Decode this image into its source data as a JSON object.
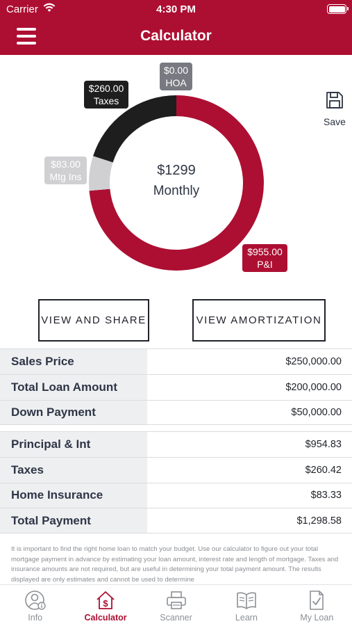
{
  "status_bar": {
    "carrier": "Carrier",
    "time": "4:30 PM"
  },
  "header": {
    "title": "Calculator",
    "menu_icon": "hamburger-menu-icon"
  },
  "chart": {
    "center_amount": "$1299",
    "center_label": "Monthly",
    "segments": [
      {
        "label": "P&I",
        "amount": "$955.00",
        "value": 955,
        "color": "#ad0f32"
      },
      {
        "label": "Mtg Ins",
        "amount": "$83.00",
        "value": 83,
        "color": "#d0d0d2"
      },
      {
        "label": "Taxes",
        "amount": "$260.00",
        "value": 260,
        "color": "#1e1e1f"
      },
      {
        "label": "HOA",
        "amount": "$0.00",
        "value": 0,
        "color": "#777a80"
      }
    ]
  },
  "save": {
    "label": "Save",
    "icon": "floppy-disk-icon"
  },
  "buttons": {
    "share": "VIEW AND SHARE",
    "amortization": "VIEW AMORTIZATION"
  },
  "loan_rows": [
    {
      "label": "Sales Price",
      "value": "$250,000.00"
    },
    {
      "label": "Total Loan Amount",
      "value": "$200,000.00"
    },
    {
      "label": "Down Payment",
      "value": "$50,000.00"
    }
  ],
  "payment_rows": [
    {
      "label": "Principal & Int",
      "value": "$954.83"
    },
    {
      "label": "Taxes",
      "value": "$260.42"
    },
    {
      "label": "Home Insurance",
      "value": "$83.33"
    },
    {
      "label": "Total Payment",
      "value": "$1,298.58"
    }
  ],
  "disclaimer": "It is important to find the right home loan to match your budget. Use our calculator to figure out your total mortgage payment in advance by estimating your loan amount, interest rate and length of mortgage. Taxes and insurance amounts are not required, but are useful in determining your total payment amount. The results displayed are only estimates and cannot be used to determine",
  "tabs": [
    {
      "label": "Info",
      "icon": "person-info-icon",
      "active": false
    },
    {
      "label": "Calculator",
      "icon": "house-dollar-icon",
      "active": true
    },
    {
      "label": "Scanner",
      "icon": "printer-icon",
      "active": false
    },
    {
      "label": "Learn",
      "icon": "open-book-icon",
      "active": false
    },
    {
      "label": "My Loan",
      "icon": "document-check-icon",
      "active": false
    }
  ],
  "colors": {
    "brand": "#ad0f32",
    "label_bg": "#eeeff1",
    "inactive": "#8c8f94"
  }
}
